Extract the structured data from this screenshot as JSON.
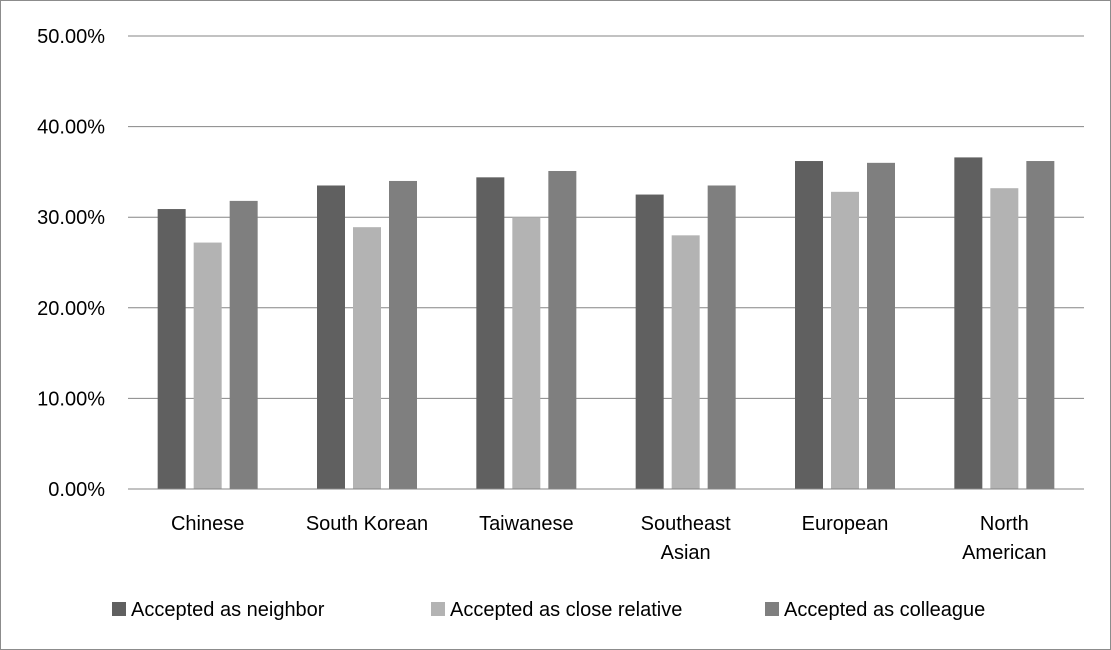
{
  "chart_data": {
    "type": "bar",
    "title": "",
    "xlabel": "",
    "ylabel": "",
    "ylim": [
      0,
      0.5
    ],
    "y_ticks": [
      0,
      0.1,
      0.2,
      0.3,
      0.4,
      0.5
    ],
    "y_tick_labels": [
      "0.00%",
      "10.00%",
      "20.00%",
      "30.00%",
      "40.00%",
      "50.00%"
    ],
    "grid": true,
    "legend_position": "bottom",
    "categories": [
      [
        "Chinese"
      ],
      [
        "South Korean"
      ],
      [
        "Taiwanese"
      ],
      [
        "Southeast",
        "Asian"
      ],
      [
        "European"
      ],
      [
        "North",
        "American"
      ]
    ],
    "series": [
      {
        "name": "Accepted as neighbor",
        "color": "#606060",
        "values": [
          0.309,
          0.335,
          0.344,
          0.325,
          0.362,
          0.366
        ]
      },
      {
        "name": "Accepted as close relative",
        "color": "#b3b3b3",
        "values": [
          0.272,
          0.289,
          0.3,
          0.28,
          0.328,
          0.332
        ]
      },
      {
        "name": "Accepted as colleague",
        "color": "#7f7f7f",
        "values": [
          0.318,
          0.34,
          0.351,
          0.335,
          0.36,
          0.362
        ]
      }
    ]
  }
}
